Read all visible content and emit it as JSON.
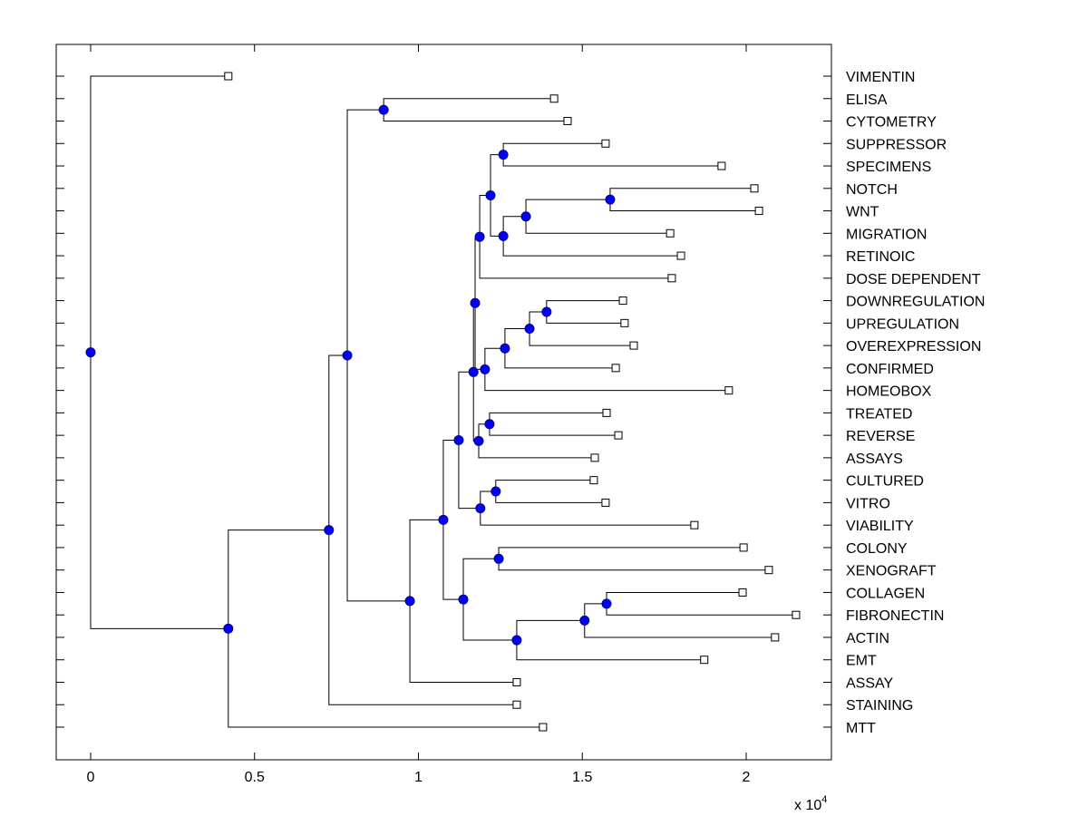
{
  "chart_data": {
    "type": "dendrogram",
    "title": "",
    "xlabel": "",
    "ylabel": "",
    "x_multiplier_label": "x 10",
    "x_multiplier_exponent": "4",
    "xlim": [
      -0.105,
      2.26
    ],
    "xticks": [
      0,
      0.5,
      1,
      1.5,
      2
    ],
    "xtick_labels": [
      "0",
      "0.5",
      "1",
      "1.5",
      "2"
    ],
    "grid": false,
    "colors": {
      "node_fill": "#0000ff",
      "node_stroke": "#000080",
      "line": "#000000",
      "leaf_fill": "#ffffff"
    },
    "leaves": [
      {
        "id": "VIMENTIN",
        "label": "VIMENTIN",
        "x": 0.42
      },
      {
        "id": "ELISA",
        "label": "ELISA",
        "x": 1.414
      },
      {
        "id": "CYTOMETRY",
        "label": "CYTOMETRY",
        "x": 1.455
      },
      {
        "id": "SUPPRESSOR",
        "label": "SUPPRESSOR",
        "x": 1.571
      },
      {
        "id": "SPECIMENS",
        "label": "SPECIMENS",
        "x": 1.925
      },
      {
        "id": "NOTCH",
        "label": "NOTCH",
        "x": 2.025
      },
      {
        "id": "WNT",
        "label": "WNT",
        "x": 2.039
      },
      {
        "id": "MIGRATION",
        "label": "MIGRATION",
        "x": 1.768
      },
      {
        "id": "RETINOIC",
        "label": "RETINOIC",
        "x": 1.801
      },
      {
        "id": "DOSE_DEPENDENT",
        "label": "DOSE DEPENDENT",
        "x": 1.773
      },
      {
        "id": "DOWNREGULATION",
        "label": "DOWNREGULATION",
        "x": 1.624
      },
      {
        "id": "UPREGULATION",
        "label": "UPREGULATION",
        "x": 1.629
      },
      {
        "id": "OVEREXPRESSION",
        "label": "OVEREXPRESSION",
        "x": 1.657
      },
      {
        "id": "CONFIRMED",
        "label": "CONFIRMED",
        "x": 1.602
      },
      {
        "id": "HOMEOBOX",
        "label": "HOMEOBOX",
        "x": 1.947
      },
      {
        "id": "TREATED",
        "label": "TREATED",
        "x": 1.574
      },
      {
        "id": "REVERSE",
        "label": "REVERSE",
        "x": 1.61
      },
      {
        "id": "ASSAYS",
        "label": "ASSAYS",
        "x": 1.538
      },
      {
        "id": "CULTURED",
        "label": "CULTURED",
        "x": 1.535
      },
      {
        "id": "VITRO",
        "label": "VITRO",
        "x": 1.571
      },
      {
        "id": "VIABILITY",
        "label": "VIABILITY",
        "x": 1.842
      },
      {
        "id": "COLONY",
        "label": "COLONY",
        "x": 1.992
      },
      {
        "id": "XENOGRAFT",
        "label": "XENOGRAFT",
        "x": 2.069
      },
      {
        "id": "COLLAGEN",
        "label": "COLLAGEN",
        "x": 1.989
      },
      {
        "id": "FIBRONECTIN",
        "label": "FIBRONECTIN",
        "x": 2.152
      },
      {
        "id": "ACTIN",
        "label": "ACTIN",
        "x": 2.088
      },
      {
        "id": "EMT",
        "label": "EMT",
        "x": 1.872
      },
      {
        "id": "ASSAY",
        "label": "ASSAY",
        "x": 1.3
      },
      {
        "id": "STAINING",
        "label": "STAINING",
        "x": 1.3
      },
      {
        "id": "MTT",
        "label": "MTT",
        "x": 1.38
      }
    ],
    "nodes": [
      {
        "id": "root",
        "x": 0.0,
        "children": [
          "VIMENTIN",
          "A"
        ]
      },
      {
        "id": "A",
        "x": 0.42,
        "children": [
          "B",
          "MTT"
        ]
      },
      {
        "id": "B",
        "x": 0.727,
        "children": [
          "C",
          "STAINING"
        ]
      },
      {
        "id": "C",
        "x": 0.783,
        "children": [
          "D",
          "E"
        ]
      },
      {
        "id": "D",
        "x": 0.894,
        "children": [
          "ELISA",
          "CYTOMETRY"
        ]
      },
      {
        "id": "E",
        "x": 0.974,
        "children": [
          "F",
          "ASSAY"
        ]
      },
      {
        "id": "F",
        "x": 1.076,
        "children": [
          "G",
          "H"
        ]
      },
      {
        "id": "H",
        "x": 1.137,
        "children": [
          "I",
          "J"
        ]
      },
      {
        "id": "I",
        "x": 1.245,
        "children": [
          "COLONY",
          "XENOGRAFT"
        ]
      },
      {
        "id": "J",
        "x": 1.3,
        "children": [
          "K",
          "EMT"
        ]
      },
      {
        "id": "K",
        "x": 1.507,
        "children": [
          "L",
          "ACTIN"
        ]
      },
      {
        "id": "L",
        "x": 1.574,
        "children": [
          "COLLAGEN",
          "FIBRONECTIN"
        ]
      },
      {
        "id": "G",
        "x": 1.123,
        "children": [
          "M",
          "N"
        ]
      },
      {
        "id": "N",
        "x": 1.189,
        "children": [
          "O",
          "VIABILITY"
        ]
      },
      {
        "id": "O",
        "x": 1.236,
        "children": [
          "CULTURED",
          "VITRO"
        ]
      },
      {
        "id": "M",
        "x": 1.168,
        "children": [
          "P",
          "Q"
        ]
      },
      {
        "id": "Q",
        "x": 1.184,
        "children": [
          "R",
          "ASSAYS"
        ]
      },
      {
        "id": "R",
        "x": 1.217,
        "children": [
          "TREATED",
          "REVERSE"
        ]
      },
      {
        "id": "P",
        "x": 1.173,
        "children": [
          "S",
          "T"
        ]
      },
      {
        "id": "T",
        "x": 1.203,
        "children": [
          "U",
          "HOMEOBOX"
        ]
      },
      {
        "id": "U",
        "x": 1.264,
        "children": [
          "V",
          "CONFIRMED"
        ]
      },
      {
        "id": "V",
        "x": 1.339,
        "children": [
          "W",
          "OVEREXPRESSION"
        ]
      },
      {
        "id": "W",
        "x": 1.391,
        "children": [
          "DOWNREGULATION",
          "UPREGULATION"
        ]
      },
      {
        "id": "S",
        "x": 1.187,
        "children": [
          "X",
          "DOSE_DEPENDENT"
        ]
      },
      {
        "id": "X",
        "x": 1.22,
        "children": [
          "Y",
          "Z"
        ]
      },
      {
        "id": "Y",
        "x": 1.259,
        "children": [
          "SUPPRESSOR",
          "SPECIMENS"
        ]
      },
      {
        "id": "Z",
        "x": 1.259,
        "children": [
          "AA",
          "RETINOIC"
        ]
      },
      {
        "id": "AA",
        "x": 1.328,
        "children": [
          "AB",
          "MIGRATION"
        ]
      },
      {
        "id": "AB",
        "x": 1.585,
        "children": [
          "NOTCH",
          "WNT"
        ]
      }
    ]
  }
}
